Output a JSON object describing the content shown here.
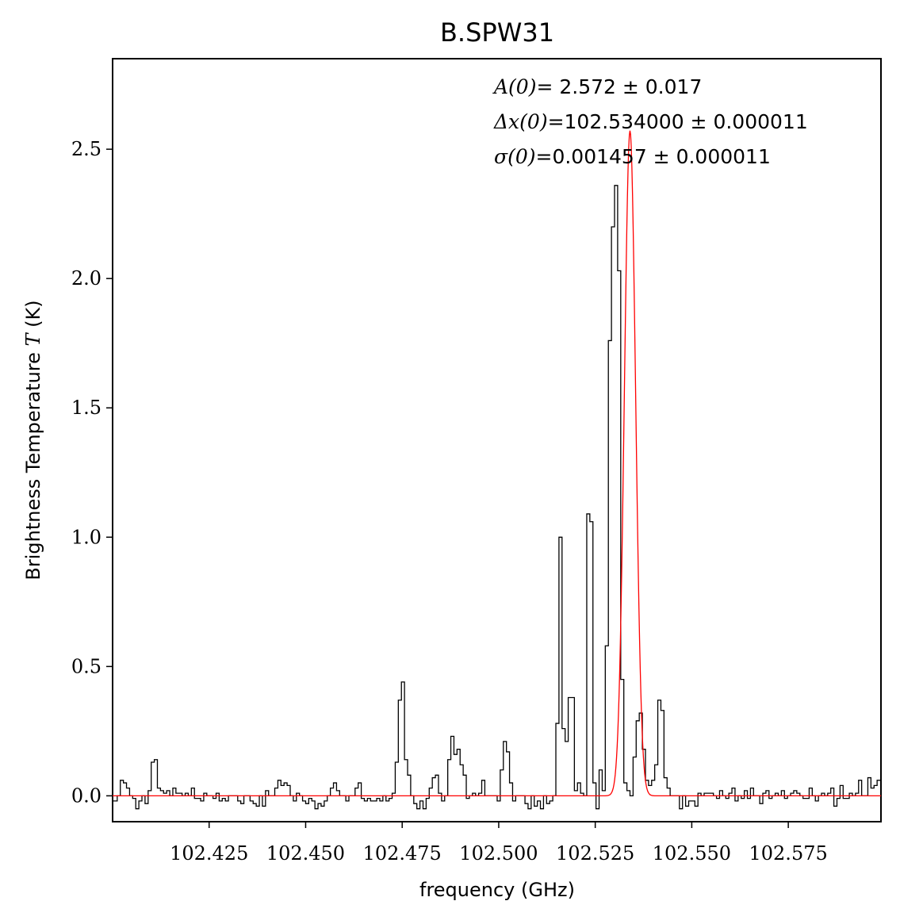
{
  "chart_data": {
    "type": "line",
    "title": "B.SPW31",
    "xlabel": "frequency (GHz)",
    "ylabel_prefix": "Brightness Temperature ",
    "ylabel_var": "T",
    "ylabel_suffix": " (K)",
    "xlim": [
      102.4,
      102.599
    ],
    "ylim": [
      -0.1,
      2.85
    ],
    "xticks": [
      102.425,
      102.45,
      102.475,
      102.5,
      102.525,
      102.55,
      102.575
    ],
    "xtick_labels": [
      "102.425",
      "102.450",
      "102.475",
      "102.500",
      "102.525",
      "102.550",
      "102.575"
    ],
    "yticks": [
      0.0,
      0.5,
      1.0,
      1.5,
      2.0,
      2.5
    ],
    "ytick_labels": [
      "0.0",
      "0.5",
      "1.0",
      "1.5",
      "2.0",
      "2.5"
    ],
    "annotations": [
      {
        "var": "A(0)=",
        "text": " 2.572 ± 0.017"
      },
      {
        "var": "Δx(0)=",
        "text": "102.534000 ± 0.000011"
      },
      {
        "var": "σ(0)=",
        "text": "0.001457 ± 0.000011"
      }
    ],
    "series": [
      {
        "drawstyle": "steps-mid",
        "color": "#000000",
        "x": [
          102.4,
          102.4008,
          102.4016,
          102.4024,
          102.4032,
          102.404,
          102.4048,
          102.4056,
          102.4064,
          102.4072,
          102.408,
          102.4088,
          102.4096,
          102.4104,
          102.4112,
          102.412,
          102.4128,
          102.4136,
          102.4144,
          102.4152,
          102.416,
          102.4168,
          102.4176,
          102.4184,
          102.4192,
          102.42,
          102.4208,
          102.4216,
          102.4224,
          102.4232,
          102.424,
          102.4248,
          102.4256,
          102.4264,
          102.4272,
          102.428,
          102.4288,
          102.4296,
          102.4304,
          102.4312,
          102.432,
          102.4328,
          102.4336,
          102.4344,
          102.4352,
          102.436,
          102.4368,
          102.4376,
          102.4384,
          102.4392,
          102.44,
          102.4408,
          102.4416,
          102.4424,
          102.4432,
          102.444,
          102.4448,
          102.4456,
          102.4464,
          102.4472,
          102.448,
          102.4488,
          102.4496,
          102.4504,
          102.4512,
          102.452,
          102.4528,
          102.4536,
          102.4544,
          102.4552,
          102.456,
          102.4568,
          102.4576,
          102.4584,
          102.4592,
          102.46,
          102.4608,
          102.4616,
          102.4624,
          102.4632,
          102.464,
          102.4648,
          102.4656,
          102.4664,
          102.4672,
          102.468,
          102.4688,
          102.4696,
          102.4704,
          102.4712,
          102.472,
          102.4728,
          102.4736,
          102.4744,
          102.4752,
          102.476,
          102.4768,
          102.4776,
          102.4784,
          102.4792,
          102.48,
          102.4808,
          102.4816,
          102.4824,
          102.4832,
          102.484,
          102.4848,
          102.4856,
          102.4864,
          102.4872,
          102.488,
          102.4888,
          102.4896,
          102.4904,
          102.4912,
          102.492,
          102.4928,
          102.4936,
          102.4944,
          102.4952,
          102.496,
          102.4968,
          102.4976,
          102.4984,
          102.4992,
          102.5,
          102.5008,
          102.5016,
          102.5024,
          102.5032,
          102.504,
          102.5048,
          102.5056,
          102.5064,
          102.5072,
          102.508,
          102.5088,
          102.5096,
          102.5104,
          102.5112,
          102.512,
          102.5128,
          102.5136,
          102.5144,
          102.5152,
          102.516,
          102.5168,
          102.5176,
          102.5184,
          102.5192,
          102.52,
          102.5208,
          102.5216,
          102.5224,
          102.5232,
          102.524,
          102.5248,
          102.5256,
          102.5264,
          102.5272,
          102.528,
          102.5288,
          102.5296,
          102.5304,
          102.5312,
          102.532,
          102.5328,
          102.5336,
          102.5344,
          102.5352,
          102.536,
          102.5368,
          102.5376,
          102.5384,
          102.5392,
          102.54,
          102.5408,
          102.5416,
          102.5424,
          102.5432,
          102.544,
          102.5448,
          102.5456,
          102.5464,
          102.5472,
          102.548,
          102.5488,
          102.5496,
          102.5504,
          102.5512,
          102.552,
          102.5528,
          102.5536,
          102.5544,
          102.5552,
          102.556,
          102.5568,
          102.5576,
          102.5584,
          102.5592,
          102.56,
          102.5608,
          102.5616,
          102.5624,
          102.5632,
          102.564,
          102.5648,
          102.5656,
          102.5664,
          102.5672,
          102.568,
          102.5688,
          102.5696,
          102.5704,
          102.5712,
          102.572,
          102.5728,
          102.5736,
          102.5744,
          102.5752,
          102.576,
          102.5768,
          102.5776,
          102.5784,
          102.5792,
          102.58,
          102.5808,
          102.5816,
          102.5824,
          102.5832,
          102.584,
          102.5848,
          102.5856,
          102.5864,
          102.5872,
          102.588,
          102.5888,
          102.5896,
          102.5904,
          102.5912,
          102.592,
          102.5928,
          102.5936,
          102.5944,
          102.5952,
          102.596,
          102.5968,
          102.5976,
          102.5984
        ],
        "y": [
          -0.02,
          -0.02,
          0.0,
          0.06,
          0.05,
          0.03,
          0.0,
          -0.01,
          -0.05,
          -0.02,
          0.0,
          -0.03,
          0.02,
          0.13,
          0.14,
          0.03,
          0.02,
          0.01,
          0.02,
          0.0,
          0.03,
          0.01,
          0.01,
          0.0,
          0.01,
          0.0,
          0.03,
          -0.01,
          -0.01,
          -0.02,
          0.01,
          0.0,
          0.0,
          -0.01,
          0.01,
          -0.02,
          -0.01,
          -0.02,
          0.0,
          0.0,
          0.0,
          -0.02,
          -0.03,
          0.0,
          0.0,
          -0.02,
          -0.03,
          -0.04,
          0.0,
          -0.04,
          0.02,
          0.0,
          0.0,
          0.03,
          0.06,
          0.04,
          0.05,
          0.04,
          0.0,
          -0.02,
          0.01,
          0.0,
          -0.02,
          -0.03,
          -0.01,
          -0.02,
          -0.05,
          -0.03,
          -0.04,
          -0.02,
          0.0,
          0.03,
          0.05,
          0.02,
          0.0,
          0.0,
          -0.02,
          0.0,
          0.0,
          0.03,
          0.05,
          -0.01,
          -0.02,
          -0.01,
          -0.02,
          -0.02,
          -0.01,
          -0.02,
          0.0,
          -0.02,
          -0.01,
          0.01,
          0.13,
          0.37,
          0.44,
          0.14,
          0.08,
          0.0,
          -0.03,
          -0.05,
          -0.02,
          -0.05,
          -0.01,
          0.03,
          0.07,
          0.08,
          0.01,
          -0.02,
          0.0,
          0.14,
          0.23,
          0.16,
          0.18,
          0.12,
          0.08,
          -0.01,
          0.0,
          0.01,
          0.0,
          0.01,
          0.06,
          0.0,
          0.0,
          0.0,
          0.0,
          -0.02,
          0.1,
          0.21,
          0.17,
          0.05,
          -0.02,
          0.0,
          0.0,
          0.0,
          -0.03,
          -0.05,
          0.0,
          -0.04,
          -0.02,
          -0.05,
          0.0,
          -0.03,
          -0.02,
          0.0,
          0.28,
          1.0,
          0.26,
          0.21,
          0.38,
          0.38,
          0.02,
          0.05,
          0.01,
          0.0,
          1.09,
          1.06,
          0.05,
          -0.05,
          0.1,
          0.02,
          0.58,
          1.76,
          2.2,
          2.36,
          2.03,
          0.45,
          0.05,
          0.02,
          0.0,
          0.15,
          0.29,
          0.32,
          0.18,
          0.06,
          0.04,
          0.06,
          0.12,
          0.37,
          0.33,
          0.07,
          0.03,
          0.0,
          0.0,
          0.0,
          -0.05,
          0.0,
          -0.04,
          -0.02,
          -0.02,
          -0.04,
          0.01,
          0.0,
          0.01,
          0.01,
          0.01,
          0.0,
          -0.01,
          0.02,
          0.0,
          -0.01,
          0.01,
          0.03,
          -0.02,
          0.0,
          -0.01,
          0.02,
          -0.01,
          0.03,
          0.0,
          0.0,
          -0.03,
          0.01,
          0.02,
          -0.01,
          0.0,
          0.01,
          0.0,
          0.02,
          -0.01,
          0.0,
          0.01,
          0.02,
          0.01,
          0.0,
          -0.01,
          -0.01,
          0.03,
          0.0,
          -0.02,
          0.0,
          0.01,
          0.0,
          0.01,
          0.03,
          -0.04,
          -0.01,
          0.04,
          -0.01,
          -0.01,
          0.01,
          0.0,
          0.01,
          0.06,
          0.0,
          0.0,
          0.07,
          0.03,
          0.04,
          0.06
        ]
      },
      {
        "drawstyle": "line",
        "color": "#ff0000",
        "model": "gaussian",
        "amplitude": 2.572,
        "center": 102.534,
        "sigma": 0.001457
      }
    ]
  }
}
